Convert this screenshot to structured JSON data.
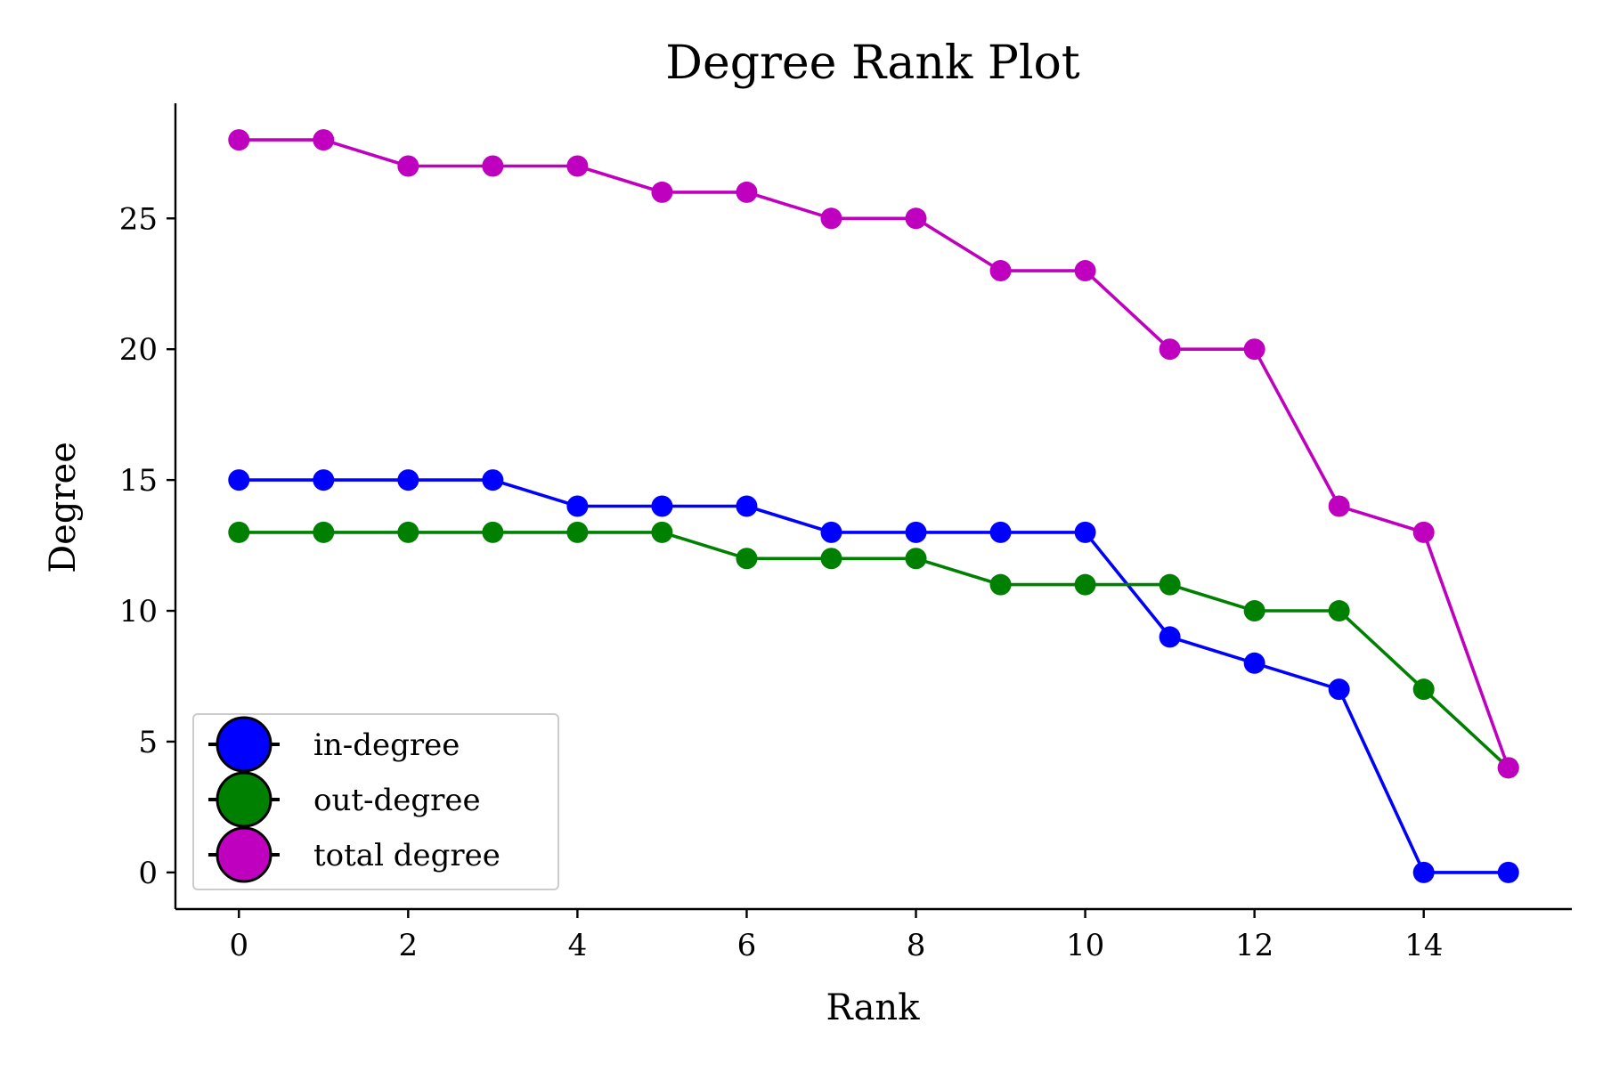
{
  "chart_data": {
    "type": "line",
    "title": "Degree Rank Plot",
    "xlabel": "Rank",
    "ylabel": "Degree",
    "xlim": [
      -0.75,
      15.75
    ],
    "ylim": [
      -1.4,
      29.4
    ],
    "x_ticks": [
      0,
      2,
      4,
      6,
      8,
      10,
      12,
      14
    ],
    "y_ticks": [
      0,
      5,
      10,
      15,
      20,
      25
    ],
    "x_tick_labels": [
      "0",
      "2",
      "4",
      "6",
      "8",
      "10",
      "12",
      "14"
    ],
    "y_tick_labels": [
      "0",
      "5",
      "10",
      "15",
      "20",
      "25"
    ],
    "grid": false,
    "legend_position": "lower-left",
    "x": [
      0,
      1,
      2,
      3,
      4,
      5,
      6,
      7,
      8,
      9,
      10,
      11,
      12,
      13,
      14,
      15
    ],
    "series": [
      {
        "name": "in-degree",
        "color": "#0000ff",
        "values": [
          15,
          15,
          15,
          15,
          14,
          14,
          14,
          13,
          13,
          13,
          13,
          9,
          8,
          7,
          0,
          0
        ]
      },
      {
        "name": "out-degree",
        "color": "#008000",
        "values": [
          13,
          13,
          13,
          13,
          13,
          13,
          12,
          12,
          12,
          11,
          11,
          11,
          10,
          10,
          7,
          4
        ]
      },
      {
        "name": "total degree",
        "color": "#bf00bf",
        "values": [
          28,
          28,
          27,
          27,
          27,
          26,
          26,
          25,
          25,
          23,
          23,
          20,
          20,
          14,
          13,
          4
        ]
      }
    ]
  }
}
